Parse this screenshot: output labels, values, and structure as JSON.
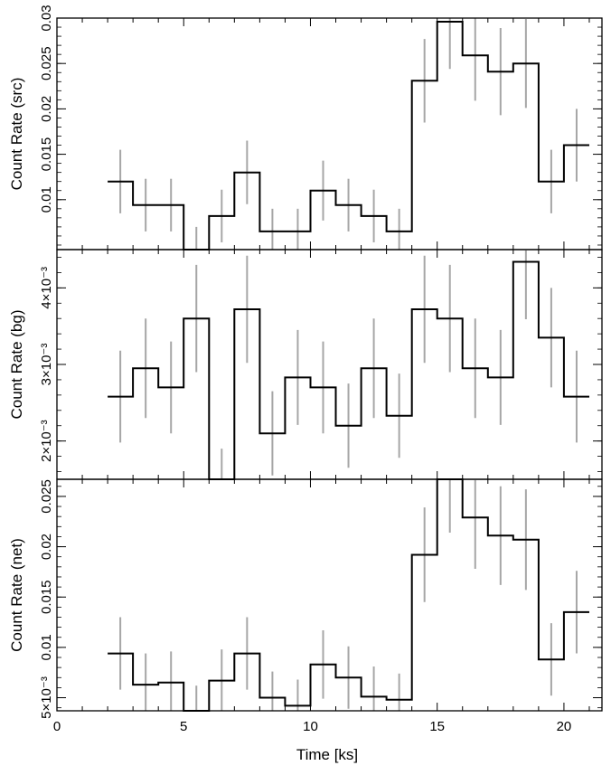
{
  "chart_data": [
    {
      "type": "line",
      "style": "step histogram with vertical error bars",
      "ylabel": "Count Rate (src)",
      "xlim": [
        0,
        21.5
      ],
      "ylim": [
        0.0045,
        0.03
      ],
      "bin_width_ks": 1.0,
      "x": [
        2.5,
        3.5,
        4.5,
        5.5,
        6.5,
        7.5,
        8.5,
        9.5,
        10.5,
        11.5,
        12.5,
        13.5,
        14.5,
        15.5,
        16.5,
        17.5,
        18.5,
        19.5,
        20.5
      ],
      "values": [
        0.012,
        0.0094,
        0.0094,
        0.0045,
        0.0082,
        0.013,
        0.0065,
        0.0065,
        0.011,
        0.0094,
        0.0082,
        0.0065,
        0.0231,
        0.0296,
        0.0259,
        0.0241,
        0.025,
        0.012,
        0.016
      ],
      "errors": [
        0.0035,
        0.0029,
        0.0029,
        0.0025,
        0.0029,
        0.0035,
        0.0025,
        0.0025,
        0.0033,
        0.0029,
        0.0029,
        0.0025,
        0.0046,
        0.0052,
        0.005,
        0.0048,
        0.0049,
        0.0035,
        0.004
      ],
      "yticks": [
        "0.01",
        "0.015",
        "0.02",
        "0.025",
        "0.03"
      ],
      "ytick_values": [
        0.01,
        0.015,
        0.02,
        0.025,
        0.03
      ]
    },
    {
      "type": "line",
      "style": "step histogram with vertical error bars",
      "ylabel": "Count Rate (bg)",
      "xlim": [
        0,
        21.5
      ],
      "ylim": [
        0.0015,
        0.0045
      ],
      "bin_width_ks": 1.0,
      "x": [
        2.5,
        3.5,
        4.5,
        5.5,
        6.5,
        7.5,
        8.5,
        9.5,
        10.5,
        11.5,
        12.5,
        13.5,
        14.5,
        15.5,
        16.5,
        17.5,
        18.5,
        19.5,
        20.5
      ],
      "values": [
        0.00258,
        0.00295,
        0.0027,
        0.0036,
        0.0015,
        0.00372,
        0.0021,
        0.00283,
        0.0027,
        0.0022,
        0.00295,
        0.00233,
        0.00372,
        0.0036,
        0.00295,
        0.00283,
        0.00434,
        0.00335,
        0.00258
      ],
      "errors": [
        0.0006,
        0.00065,
        0.0006,
        0.0007,
        0.0004,
        0.0007,
        0.00055,
        0.00062,
        0.0006,
        0.00055,
        0.00065,
        0.00055,
        0.0007,
        0.0007,
        0.00065,
        0.00062,
        0.00075,
        0.00065,
        0.0006
      ],
      "yticks": [
        "2×10⁻³",
        "3×10⁻³",
        "4×10⁻³"
      ],
      "ytick_values": [
        0.002,
        0.003,
        0.004
      ]
    },
    {
      "type": "line",
      "style": "step histogram with vertical error bars",
      "ylabel": "Count Rate (net)",
      "xlabel": "Time [ks]",
      "xlim": [
        0,
        21.5
      ],
      "ylim": [
        0.0037,
        0.0267
      ],
      "bin_width_ks": 1.0,
      "x": [
        2.5,
        3.5,
        4.5,
        5.5,
        6.5,
        7.5,
        8.5,
        9.5,
        10.5,
        11.5,
        12.5,
        13.5,
        14.5,
        15.5,
        16.5,
        17.5,
        18.5,
        19.5,
        20.5
      ],
      "values": [
        0.0094,
        0.0063,
        0.0065,
        0.0037,
        0.0067,
        0.0094,
        0.005,
        0.0042,
        0.0083,
        0.007,
        0.0051,
        0.0048,
        0.0192,
        0.0267,
        0.0229,
        0.0211,
        0.0207,
        0.0088,
        0.0135
      ],
      "errors": [
        0.0036,
        0.0031,
        0.0031,
        0.0025,
        0.0031,
        0.0036,
        0.0026,
        0.0026,
        0.0034,
        0.0031,
        0.003,
        0.0026,
        0.0047,
        0.0053,
        0.0051,
        0.0049,
        0.005,
        0.0036,
        0.0041
      ],
      "yticks": [
        "5×10⁻³",
        "0.01",
        "0.015",
        "0.02",
        "0.025"
      ],
      "ytick_values": [
        0.005,
        0.01,
        0.015,
        0.02,
        0.025
      ],
      "xticks": [
        "0",
        "5",
        "10",
        "15",
        "20"
      ],
      "xtick_values": [
        0,
        5,
        10,
        15,
        20
      ]
    }
  ],
  "colors": {
    "step_line": "#000000",
    "error_bar": "#a6a6a6",
    "frame": "#000000"
  }
}
